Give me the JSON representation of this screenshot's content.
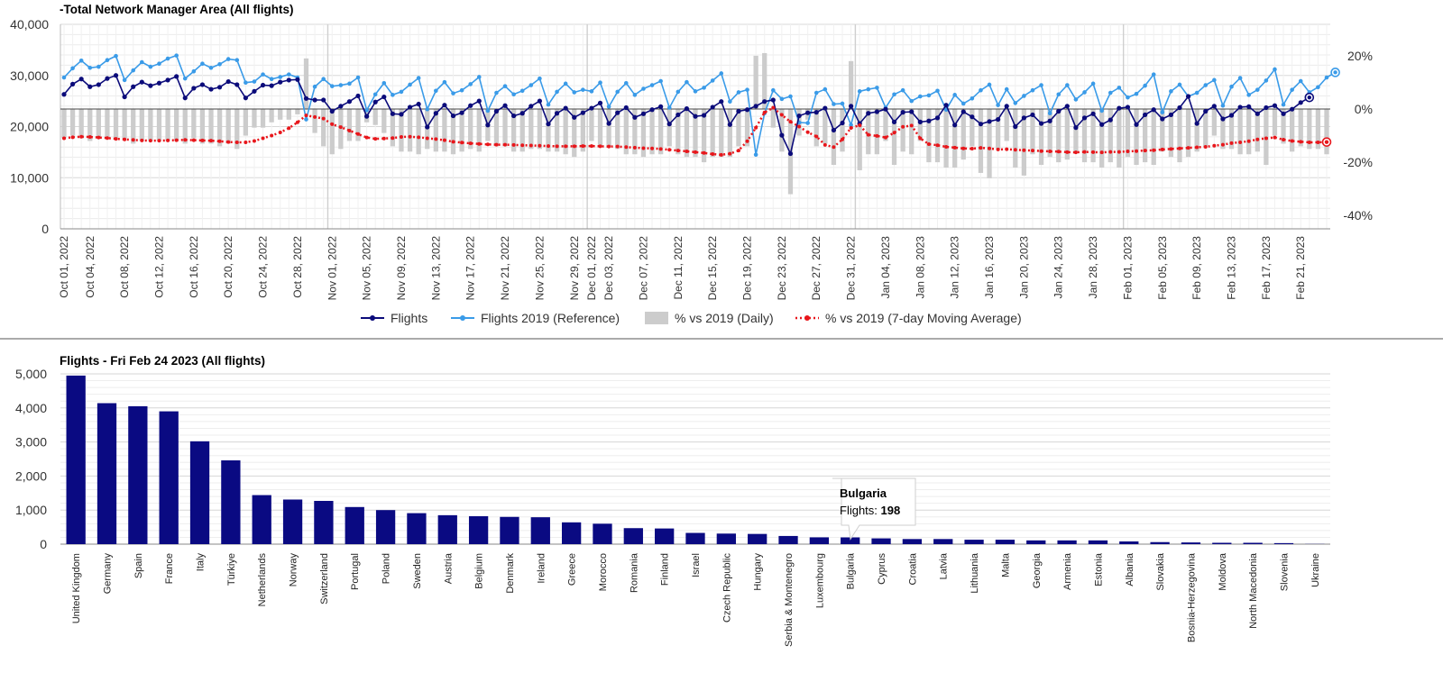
{
  "chart_data": [
    {
      "type": "line",
      "title": "-Total Network Manager Area (All flights)",
      "y_left": {
        "ticks": [
          "0",
          "10,000",
          "20,000",
          "30,000",
          "40,000"
        ],
        "range": [
          0,
          40000
        ]
      },
      "y_right": {
        "ticks": [
          "-40%",
          "-20%",
          "0%",
          "20%"
        ],
        "range": [
          -45,
          27.5
        ]
      },
      "x_ticks": [
        "Oct 01, 2022",
        "Oct 04, 2022",
        "Oct 08, 2022",
        "Oct 12, 2022",
        "Oct 16, 2022",
        "Oct 20, 2022",
        "Oct 24, 2022",
        "Oct 28, 2022",
        "Nov 01, 2022",
        "Nov 05, 2022",
        "Nov 09, 2022",
        "Nov 13, 2022",
        "Nov 17, 2022",
        "Nov 21, 2022",
        "Nov 25, 2022",
        "Nov 29, 2022",
        "Dec 01, 2022",
        "Dec 03, 2022",
        "Dec 07, 2022",
        "Dec 11, 2022",
        "Dec 15, 2022",
        "Dec 19, 2022",
        "Dec 23, 2022",
        "Dec 27, 2022",
        "Dec 31, 2022",
        "Jan 04, 2023",
        "Jan 08, 2023",
        "Jan 12, 2023",
        "Jan 16, 2023",
        "Jan 20, 2023",
        "Jan 24, 2023",
        "Jan 28, 2023",
        "Feb 01, 2023",
        "Feb 05, 2023",
        "Feb 09, 2023",
        "Feb 13, 2023",
        "Feb 17, 2023",
        "Feb 21, 2023"
      ],
      "x_tick_days": [
        0,
        3,
        7,
        11,
        15,
        19,
        23,
        27,
        31,
        35,
        39,
        43,
        47,
        51,
        55,
        59,
        61,
        63,
        67,
        71,
        75,
        79,
        83,
        87,
        91,
        95,
        99,
        103,
        107,
        111,
        115,
        119,
        123,
        127,
        131,
        135,
        139,
        143
      ],
      "x_range_days": [
        0,
        146
      ],
      "grid": true,
      "legend_position": "bottom",
      "series": [
        {
          "name": "Flights",
          "color": "#0b0b7a",
          "axis": "left",
          "values": [
            26300,
            28300,
            29300,
            27800,
            28200,
            29400,
            30000,
            25800,
            27800,
            28700,
            28000,
            28500,
            29100,
            29800,
            25600,
            27500,
            28200,
            27300,
            27700,
            28800,
            28200,
            25600,
            26900,
            28100,
            28000,
            28700,
            29100,
            29200,
            25500,
            25200,
            25200,
            23000,
            24000,
            24900,
            26000,
            22000,
            24800,
            25800,
            22500,
            22400,
            23800,
            24400,
            19900,
            22600,
            24200,
            22100,
            22700,
            24100,
            25000,
            20300,
            23000,
            24100,
            22100,
            22600,
            24000,
            25000,
            20500,
            22600,
            23600,
            21800,
            22700,
            23600,
            24600,
            20600,
            22700,
            23700,
            21800,
            22500,
            23300,
            23900,
            20500,
            22300,
            23500,
            22000,
            22200,
            23800,
            24900,
            20400,
            23000,
            23300,
            24000,
            24900,
            25200,
            18300,
            14700,
            22100,
            22700,
            22800,
            23600,
            19300,
            20700,
            24000,
            20600,
            22600,
            22900,
            23400,
            20900,
            22800,
            22900,
            20900,
            21100,
            21700,
            24200,
            20300,
            22900,
            21900,
            20500,
            21000,
            21400,
            24000,
            20000,
            21700,
            22300,
            20600,
            21100,
            23000,
            24000,
            19800,
            21700,
            22500,
            20400,
            21300,
            23600,
            23800,
            20400,
            22300,
            23300,
            21500,
            22300,
            23700,
            25900,
            20600,
            23000,
            24000,
            21500,
            22200,
            23800,
            23900,
            22500,
            23700,
            24100,
            22500,
            23400,
            24700,
            25700
          ]
        },
        {
          "name": "Flights 2019 (Reference)",
          "color": "#3a9be8",
          "axis": "left",
          "values": [
            29600,
            31400,
            32900,
            31500,
            31700,
            33000,
            33800,
            29100,
            31000,
            32600,
            31700,
            32300,
            33300,
            33900,
            29400,
            30800,
            32300,
            31500,
            32200,
            33200,
            33000,
            28600,
            28800,
            30200,
            29300,
            29700,
            30200,
            29600,
            21400,
            27800,
            29300,
            27900,
            28100,
            28400,
            29600,
            23200,
            26300,
            28500,
            26200,
            26800,
            28200,
            29500,
            23400,
            27000,
            28700,
            26500,
            27100,
            28300,
            29700,
            23100,
            26600,
            27900,
            26300,
            27000,
            28100,
            29400,
            24300,
            26800,
            28400,
            26700,
            27200,
            26900,
            28600,
            23900,
            26800,
            28500,
            26200,
            27400,
            28100,
            28900,
            23700,
            26800,
            28700,
            26900,
            27600,
            29000,
            30400,
            24900,
            26700,
            27200,
            14500,
            22600,
            27100,
            25400,
            25900,
            20800,
            20700,
            26600,
            27300,
            24400,
            24500,
            20300,
            26900,
            27300,
            27600,
            23700,
            26300,
            27100,
            25000,
            25900,
            26100,
            27000,
            23300,
            26200,
            24500,
            25500,
            27100,
            28200,
            24200,
            27300,
            24600,
            26000,
            27100,
            28100,
            22600,
            26300,
            28100,
            25300,
            26700,
            28400,
            23100,
            26600,
            27600,
            25700,
            26400,
            28000,
            30200,
            22800,
            26900,
            28200,
            25900,
            26600,
            28100,
            29100,
            24100,
            27800,
            29500,
            26200,
            27200,
            29000,
            31200,
            24300,
            27200,
            28900,
            26700,
            27700,
            29600,
            30600
          ]
        },
        {
          "name": "% vs 2019 (Daily)",
          "color": "#cccccc",
          "axis": "right",
          "type": "bar",
          "values": [
            -11,
            -10,
            -11,
            -12,
            -11,
            -11,
            -11,
            -11,
            -13,
            -12,
            -12,
            -12,
            -12,
            -12,
            -13,
            -11,
            -13,
            -13,
            -14,
            -13,
            -15,
            -10,
            -7,
            -7,
            -5,
            -4,
            -4,
            -2,
            19,
            -9,
            -14,
            -17,
            -15,
            -12,
            -12,
            -5,
            -6,
            -9,
            -14,
            -16,
            -16,
            -17,
            -15,
            -16,
            -16,
            -17,
            -16,
            -15,
            -16,
            -12,
            -14,
            -14,
            -16,
            -16,
            -15,
            -15,
            -16,
            -16,
            -17,
            -18,
            -16,
            -12,
            -14,
            -14,
            -15,
            -17,
            -17,
            -18,
            -17,
            -17,
            -14,
            -17,
            -18,
            -18,
            -20,
            -18,
            -18,
            -18,
            -14,
            -14,
            20,
            21,
            -7,
            -16,
            -32,
            -10,
            -4,
            -14,
            -13,
            -21,
            -16,
            18,
            -23,
            -17,
            -17,
            -12,
            -21,
            -16,
            -17,
            -12,
            -20,
            -20,
            -22,
            -22,
            -19,
            -14,
            -24,
            -26,
            -15,
            -12,
            -22,
            -25,
            -17,
            -21,
            -18,
            -20,
            -19,
            -16,
            -20,
            -20,
            -22,
            -20,
            -22,
            -18,
            -21,
            -20,
            -21,
            -16,
            -18,
            -20,
            -18,
            -16,
            -14,
            -10,
            -15,
            -15,
            -17,
            -17,
            -16,
            -21,
            -10,
            -13,
            -16,
            -14,
            -15,
            -15,
            -17
          ]
        },
        {
          "name": "% vs 2019 (7-day Moving Average)",
          "color": "#e8161b",
          "axis": "right",
          "style": "dotted",
          "values": [
            -11,
            -10.6,
            -10.4,
            -10.5,
            -10.7,
            -10.9,
            -11.2,
            -11.4,
            -11.6,
            -11.8,
            -11.9,
            -11.9,
            -11.8,
            -11.7,
            -11.6,
            -11.7,
            -11.8,
            -11.9,
            -12.1,
            -12.4,
            -12.5,
            -12.5,
            -12,
            -11,
            -10,
            -8.8,
            -7.2,
            -5,
            -2.4,
            -3,
            -3.6,
            -5.7,
            -6.8,
            -8.1,
            -9.4,
            -10.7,
            -11.2,
            -11.1,
            -10.9,
            -10.5,
            -10.4,
            -10.6,
            -11,
            -11.3,
            -11.7,
            -12.3,
            -12.6,
            -12.9,
            -13.1,
            -13.3,
            -13.4,
            -13.4,
            -13.5,
            -13.6,
            -13.7,
            -13.8,
            -13.9,
            -14,
            -14,
            -14,
            -13.9,
            -13.9,
            -14,
            -14.1,
            -14.1,
            -14.3,
            -14.5,
            -14.7,
            -14.8,
            -15,
            -15.3,
            -15.6,
            -15.9,
            -16.2,
            -16.5,
            -16.9,
            -17.2,
            -16.8,
            -15.6,
            -12.1,
            -7,
            -1.3,
            0.5,
            -2.2,
            -4.8,
            -6.6,
            -8.7,
            -10.3,
            -13.5,
            -14.3,
            -11.4,
            -7.1,
            -6.1,
            -9.7,
            -10.1,
            -10.7,
            -8.9,
            -6.7,
            -6.2,
            -11,
            -13.2,
            -13.6,
            -14.2,
            -14.5,
            -14.8,
            -14.9,
            -14.6,
            -14.8,
            -15.2,
            -15.1,
            -15.3,
            -15.5,
            -15.6,
            -15.8,
            -15.9,
            -16,
            -16.2,
            -16.3,
            -16.1,
            -16.2,
            -16.3,
            -16.1,
            -16.1,
            -15.9,
            -15.8,
            -15.6,
            -15.5,
            -15.2,
            -15,
            -14.8,
            -14.6,
            -14.4,
            -14.2,
            -13.8,
            -13.4,
            -12.8,
            -12.5,
            -12.1,
            -11.4,
            -11,
            -10.7,
            -11.5,
            -12,
            -12.3,
            -12.5,
            -12.5,
            -12.4
          ]
        }
      ]
    },
    {
      "type": "bar",
      "title": "Flights - Fri Feb 24 2023 (All flights)",
      "y_ticks": [
        "0",
        "1,000",
        "2,000",
        "3,000",
        "4,000",
        "5,000"
      ],
      "ylim": [
        0,
        5000
      ],
      "color": "#0a0a82",
      "categories": [
        "United Kingdom",
        "Germany",
        "Spain",
        "France",
        "Italy",
        "Türkiye",
        "Netherlands",
        "Norway",
        "Switzerland",
        "Portugal",
        "Poland",
        "Sweden",
        "Austria",
        "Belgium",
        "Denmark",
        "Ireland",
        "Greece",
        "Morocco",
        "Romania",
        "Finland",
        "Israel",
        "Czech Republic",
        "Hungary",
        "Serbia & Montenegro",
        "Luxembourg",
        "Bulgaria",
        "Cyprus",
        "Croatia",
        "Latvia",
        "Lithuania",
        "Malta",
        "Georgia",
        "Armenia",
        "Estonia",
        "Albania",
        "Slovakia",
        "Bosnia-Herzegovina",
        "Moldova",
        "North Macedonia",
        "Slovenia",
        "Ukraine"
      ],
      "values": [
        4950,
        4140,
        4050,
        3900,
        3020,
        2460,
        1440,
        1310,
        1270,
        1090,
        1000,
        910,
        850,
        820,
        800,
        790,
        640,
        600,
        470,
        460,
        330,
        310,
        300,
        240,
        200,
        198,
        170,
        150,
        150,
        130,
        130,
        110,
        110,
        110,
        80,
        60,
        50,
        40,
        40,
        30,
        5
      ],
      "tooltip": {
        "country": "Bulgaria",
        "label": "Flights: ",
        "value": "198"
      }
    }
  ]
}
